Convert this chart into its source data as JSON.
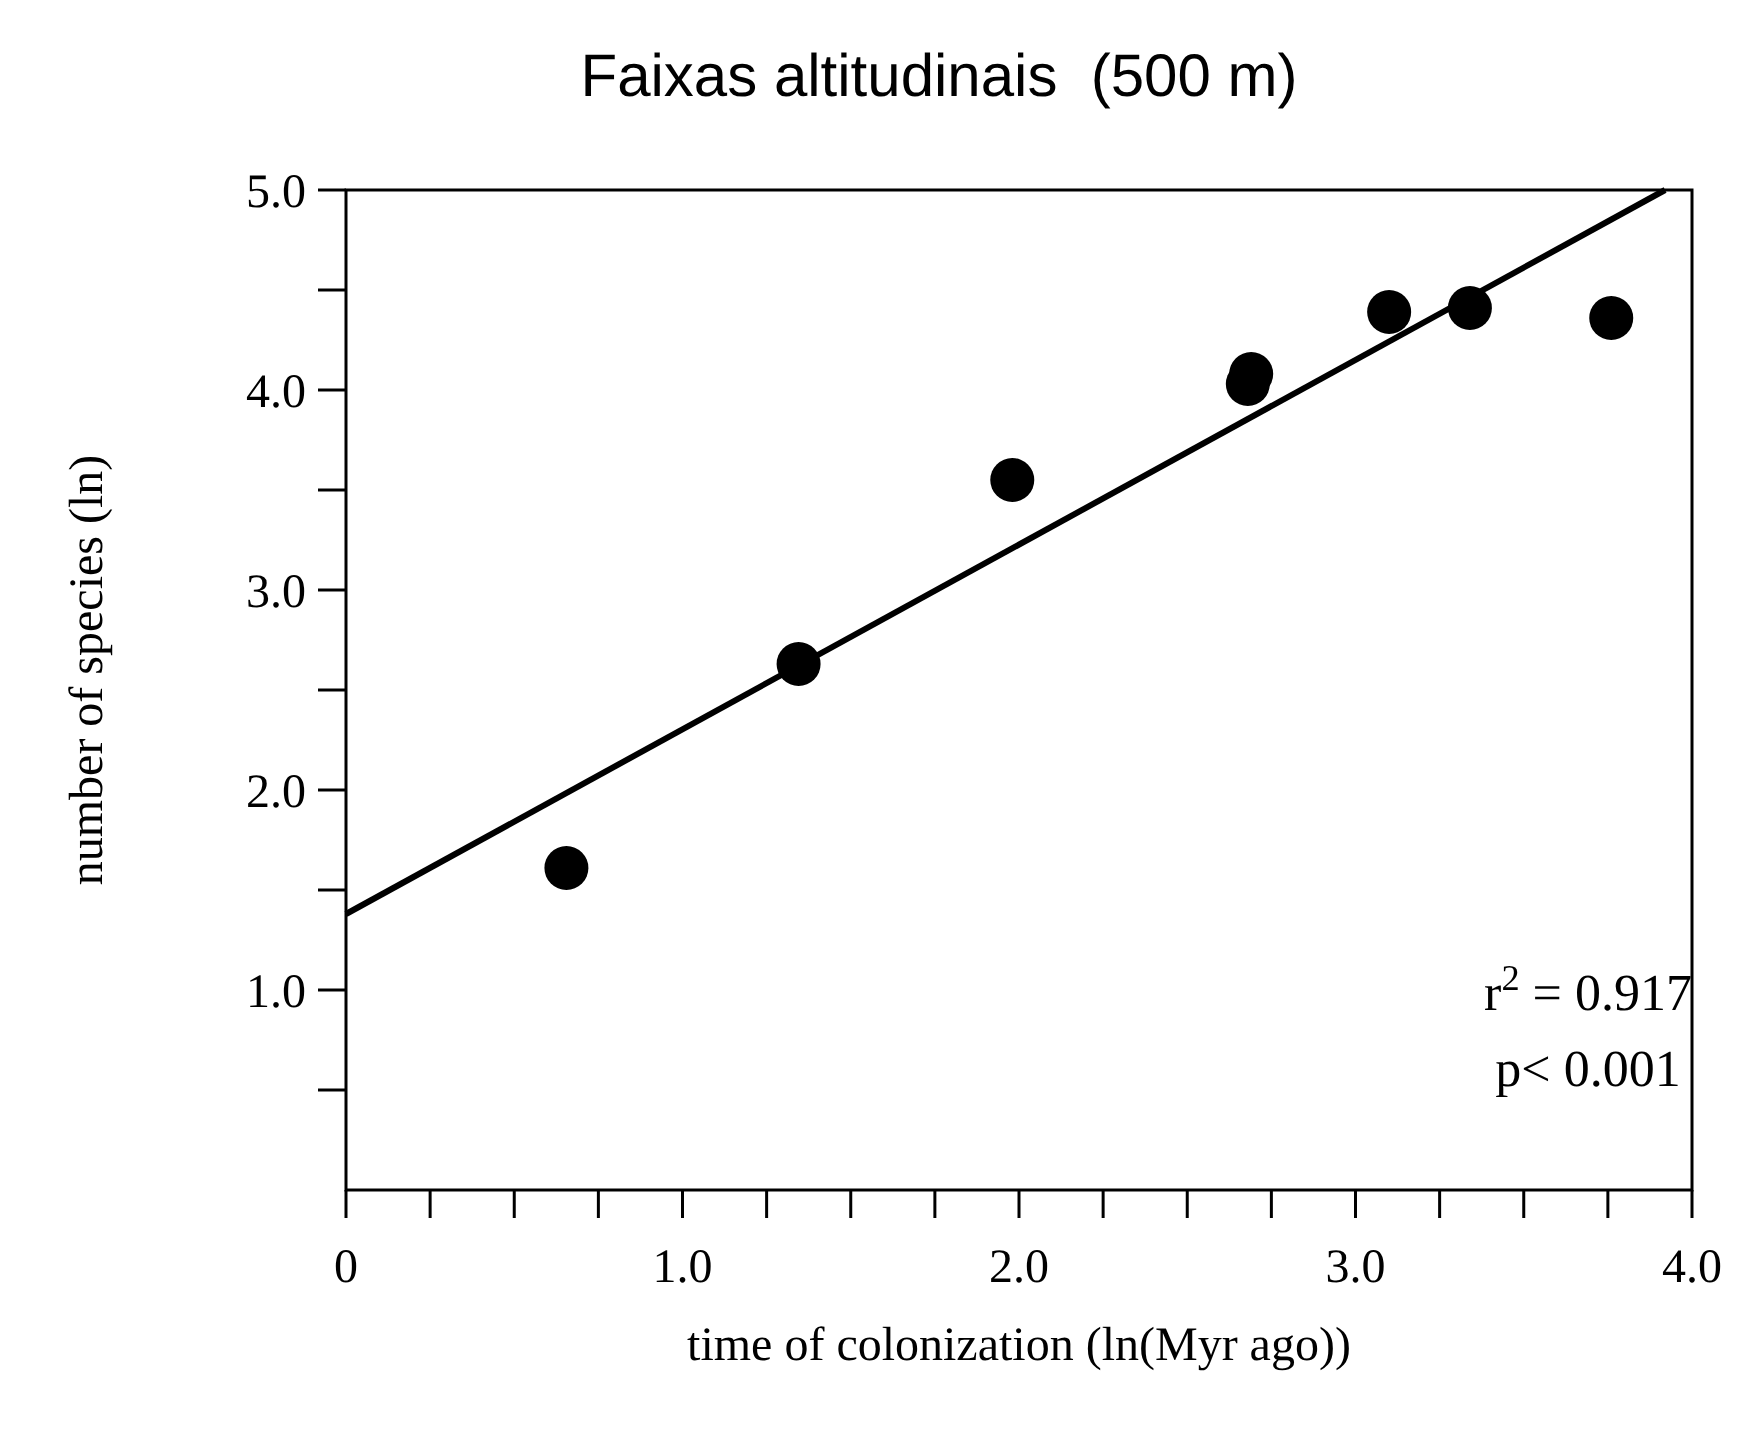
{
  "chart_data": {
    "type": "scatter",
    "title": "Faixas altitudinais  (500 m)",
    "xlabel": "time of colonization (ln(Myr ago))",
    "ylabel": "number of species (ln)",
    "xlim": [
      0,
      4
    ],
    "ylim": [
      0,
      5
    ],
    "xticks": [
      0,
      {
        "value": 0.25,
        "label": null
      },
      {
        "value": 0.5,
        "label": null
      },
      {
        "value": 0.75,
        "label": null
      },
      {
        "value": 1,
        "label": "1.0"
      },
      {
        "value": 1.25,
        "label": null
      },
      {
        "value": 1.5,
        "label": null
      },
      {
        "value": 1.75,
        "label": null
      },
      {
        "value": 2,
        "label": "2.0"
      },
      {
        "value": 2.25,
        "label": null
      },
      {
        "value": 2.5,
        "label": null
      },
      {
        "value": 2.75,
        "label": null
      },
      {
        "value": 3,
        "label": "3.0"
      },
      {
        "value": 3.25,
        "label": null
      },
      {
        "value": 3.5,
        "label": null
      },
      {
        "value": 3.75,
        "label": null
      },
      {
        "value": 4,
        "label": "4.0"
      }
    ],
    "yticks": [
      {
        "value": 0.5,
        "label": null
      },
      {
        "value": 1,
        "label": "1.0"
      },
      {
        "value": 1.5,
        "label": null
      },
      {
        "value": 2,
        "label": "2.0"
      },
      {
        "value": 2.5,
        "label": null
      },
      {
        "value": 3,
        "label": "3.0"
      },
      {
        "value": 3.5,
        "label": null
      },
      {
        "value": 4,
        "label": "4.0"
      },
      {
        "value": 4.5,
        "label": null
      },
      {
        "value": 5,
        "label": "5.0"
      }
    ],
    "grid": false,
    "series": [
      {
        "marker": "circle",
        "color": "#000000",
        "x": [
          0.655,
          1.345,
          1.98,
          2.68,
          2.69,
          3.1,
          3.34,
          3.76
        ],
        "values": [
          1.61,
          2.63,
          3.55,
          4.03,
          4.08,
          4.39,
          4.41,
          4.36
        ]
      },
      {
        "type": "line",
        "color": "#000000",
        "x": [
          0,
          3.92
        ],
        "values": [
          1.38,
          5.0
        ]
      }
    ],
    "annotations": [
      "r$^{2}$ = 0.917",
      "p< 0.001"
    ]
  }
}
